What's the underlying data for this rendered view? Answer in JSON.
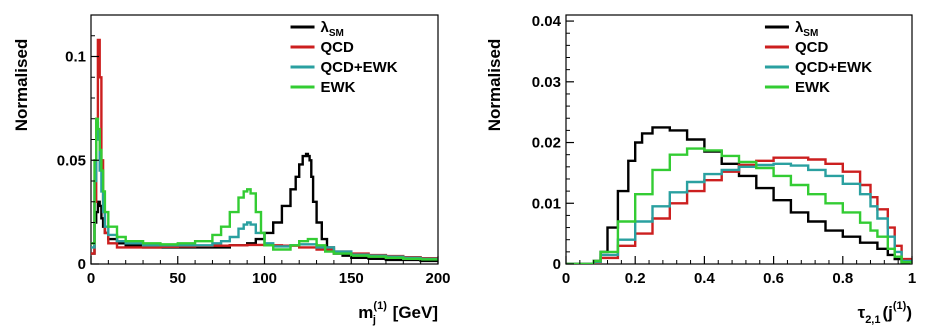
{
  "chart_data": [
    {
      "type": "line",
      "step": true,
      "ylabel": "Normalised",
      "xlabel_main": "m",
      "xlabel_sub": "j",
      "xlabel_sup": "(1)",
      "xlabel_unit": " [GeV]",
      "xlim": [
        0,
        200
      ],
      "ylim": [
        0,
        0.12
      ],
      "x_ticks": [
        0,
        50,
        100,
        150,
        200
      ],
      "y_ticks": [
        0,
        0.05,
        0.1
      ],
      "x_tick_labels": [
        "0",
        "50",
        "100",
        "150",
        "200"
      ],
      "y_tick_labels": [
        "0",
        "0.05",
        "0.1"
      ],
      "legend_position": "top-right",
      "series": [
        {
          "name": "λ",
          "name_sub": "SM",
          "color": "#000000",
          "x": [
            0,
            2,
            3,
            4,
            5,
            6,
            7,
            8,
            10,
            15,
            20,
            30,
            40,
            50,
            60,
            70,
            80,
            90,
            95,
            100,
            105,
            110,
            115,
            118,
            120,
            122,
            124,
            125,
            126,
            127,
            128,
            130,
            133,
            136,
            140,
            145,
            150,
            160,
            170,
            180,
            190,
            200
          ],
          "y": [
            0.005,
            0.02,
            0.025,
            0.03,
            0.028,
            0.022,
            0.018,
            0.015,
            0.012,
            0.01,
            0.009,
            0.008,
            0.008,
            0.008,
            0.008,
            0.008,
            0.009,
            0.01,
            0.012,
            0.015,
            0.02,
            0.028,
            0.036,
            0.042,
            0.048,
            0.052,
            0.053,
            0.052,
            0.05,
            0.042,
            0.03,
            0.02,
            0.012,
            0.008,
            0.005,
            0.004,
            0.003,
            0.0025,
            0.002,
            0.002,
            0.0015,
            0.0015
          ]
        },
        {
          "name": "QCD",
          "color": "#cc1f1f",
          "x": [
            0,
            2,
            3,
            4,
            5,
            6,
            7,
            8,
            10,
            15,
            20,
            30,
            40,
            50,
            60,
            70,
            80,
            90,
            100,
            110,
            120,
            130,
            140,
            150,
            160,
            170,
            180,
            190,
            200
          ],
          "y": [
            0.005,
            0.03,
            0.07,
            0.108,
            0.09,
            0.05,
            0.025,
            0.015,
            0.01,
            0.008,
            0.008,
            0.008,
            0.0083,
            0.0085,
            0.0087,
            0.0088,
            0.009,
            0.0092,
            0.009,
            0.0088,
            0.008,
            0.007,
            0.006,
            0.005,
            0.0043,
            0.0038,
            0.0033,
            0.0028,
            0.0025
          ]
        },
        {
          "name": "QCD+EWK",
          "color": "#2aa0a0",
          "x": [
            0,
            2,
            3,
            4,
            5,
            6,
            7,
            8,
            10,
            15,
            20,
            30,
            40,
            50,
            60,
            70,
            75,
            80,
            85,
            88,
            90,
            92,
            95,
            100,
            105,
            110,
            115,
            120,
            125,
            130,
            140,
            150,
            160,
            170,
            180,
            190,
            200
          ],
          "y": [
            0.008,
            0.04,
            0.068,
            0.06,
            0.045,
            0.035,
            0.025,
            0.018,
            0.014,
            0.011,
            0.01,
            0.009,
            0.009,
            0.009,
            0.009,
            0.01,
            0.011,
            0.013,
            0.017,
            0.019,
            0.02,
            0.019,
            0.015,
            0.01,
            0.0085,
            0.0085,
            0.009,
            0.0095,
            0.0095,
            0.008,
            0.006,
            0.0045,
            0.004,
            0.0035,
            0.003,
            0.0025,
            0.002
          ]
        },
        {
          "name": "EWK",
          "color": "#33cc33",
          "x": [
            0,
            2,
            3,
            4,
            5,
            6,
            7,
            8,
            10,
            15,
            20,
            30,
            40,
            50,
            60,
            70,
            75,
            80,
            85,
            88,
            90,
            92,
            95,
            98,
            100,
            105,
            110,
            115,
            120,
            125,
            130,
            135,
            140,
            150,
            160,
            170,
            180,
            190,
            200
          ],
          "y": [
            0.01,
            0.05,
            0.07,
            0.065,
            0.055,
            0.045,
            0.035,
            0.025,
            0.018,
            0.013,
            0.011,
            0.01,
            0.0095,
            0.01,
            0.011,
            0.014,
            0.018,
            0.025,
            0.032,
            0.035,
            0.036,
            0.034,
            0.025,
            0.015,
            0.009,
            0.007,
            0.007,
            0.009,
            0.011,
            0.012,
            0.009,
            0.006,
            0.005,
            0.004,
            0.0035,
            0.003,
            0.0025,
            0.0022,
            0.002
          ]
        }
      ]
    },
    {
      "type": "line",
      "step": true,
      "ylabel": "Normalised",
      "xlabel_main": "τ",
      "xlabel_sub": "2,1",
      "xlabel_paren": "(j",
      "xlabel_sup": "(1)",
      "xlabel_close": ")",
      "xlim": [
        0,
        1
      ],
      "ylim": [
        0,
        0.041
      ],
      "x_ticks": [
        0,
        0.2,
        0.4,
        0.6,
        0.8,
        1
      ],
      "y_ticks": [
        0,
        0.01,
        0.02,
        0.03,
        0.04
      ],
      "x_tick_labels": [
        "0",
        "0.2",
        "0.4",
        "0.6",
        "0.8",
        "1"
      ],
      "y_tick_labels": [
        "0",
        "0.01",
        "0.02",
        "0.03",
        "0.04"
      ],
      "legend_position": "top-right",
      "series": [
        {
          "name": "λ",
          "name_sub": "SM",
          "color": "#000000",
          "x": [
            0,
            0.05,
            0.08,
            0.1,
            0.12,
            0.15,
            0.18,
            0.2,
            0.22,
            0.25,
            0.27,
            0.3,
            0.35,
            0.4,
            0.45,
            0.5,
            0.55,
            0.6,
            0.65,
            0.7,
            0.75,
            0.8,
            0.85,
            0.9,
            0.93,
            0.95,
            0.97,
            1.0
          ],
          "y": [
            0,
            0,
            0.0005,
            0.002,
            0.006,
            0.012,
            0.017,
            0.02,
            0.0215,
            0.0225,
            0.0225,
            0.022,
            0.0205,
            0.0185,
            0.0165,
            0.0145,
            0.0125,
            0.0105,
            0.0085,
            0.007,
            0.0055,
            0.0045,
            0.0035,
            0.0025,
            0.0015,
            0.0008,
            0.0002,
            0
          ]
        },
        {
          "name": "QCD",
          "color": "#cc1f1f",
          "x": [
            0,
            0.05,
            0.08,
            0.1,
            0.15,
            0.2,
            0.25,
            0.3,
            0.35,
            0.4,
            0.45,
            0.5,
            0.55,
            0.6,
            0.65,
            0.7,
            0.75,
            0.8,
            0.85,
            0.88,
            0.9,
            0.93,
            0.95,
            0.97,
            1.0
          ],
          "y": [
            0,
            0,
            0.0002,
            0.001,
            0.003,
            0.005,
            0.0075,
            0.01,
            0.012,
            0.0138,
            0.0152,
            0.0163,
            0.017,
            0.0175,
            0.0175,
            0.0172,
            0.0165,
            0.0152,
            0.013,
            0.011,
            0.009,
            0.006,
            0.003,
            0.0008,
            0
          ]
        },
        {
          "name": "QCD+EWK",
          "color": "#2aa0a0",
          "x": [
            0,
            0.05,
            0.08,
            0.1,
            0.15,
            0.2,
            0.25,
            0.3,
            0.35,
            0.4,
            0.45,
            0.5,
            0.55,
            0.6,
            0.65,
            0.7,
            0.75,
            0.8,
            0.85,
            0.88,
            0.9,
            0.93,
            0.95,
            0.97,
            1.0
          ],
          "y": [
            0,
            0,
            0.0003,
            0.0015,
            0.004,
            0.007,
            0.0095,
            0.0118,
            0.0135,
            0.0148,
            0.0155,
            0.016,
            0.0163,
            0.0165,
            0.0162,
            0.0155,
            0.0145,
            0.0132,
            0.0115,
            0.0095,
            0.0075,
            0.0045,
            0.002,
            0.0005,
            0
          ]
        },
        {
          "name": "EWK",
          "color": "#33cc33",
          "x": [
            0,
            0.05,
            0.08,
            0.1,
            0.15,
            0.2,
            0.25,
            0.3,
            0.35,
            0.4,
            0.45,
            0.5,
            0.55,
            0.6,
            0.65,
            0.7,
            0.75,
            0.8,
            0.85,
            0.88,
            0.9,
            0.93,
            0.95,
            0.97,
            1.0
          ],
          "y": [
            0,
            0,
            0.0005,
            0.002,
            0.007,
            0.0115,
            0.0155,
            0.018,
            0.019,
            0.0187,
            0.0178,
            0.0168,
            0.0158,
            0.0145,
            0.013,
            0.0115,
            0.01,
            0.0085,
            0.0068,
            0.0055,
            0.0045,
            0.0025,
            0.0012,
            0.0003,
            0
          ]
        }
      ]
    }
  ]
}
